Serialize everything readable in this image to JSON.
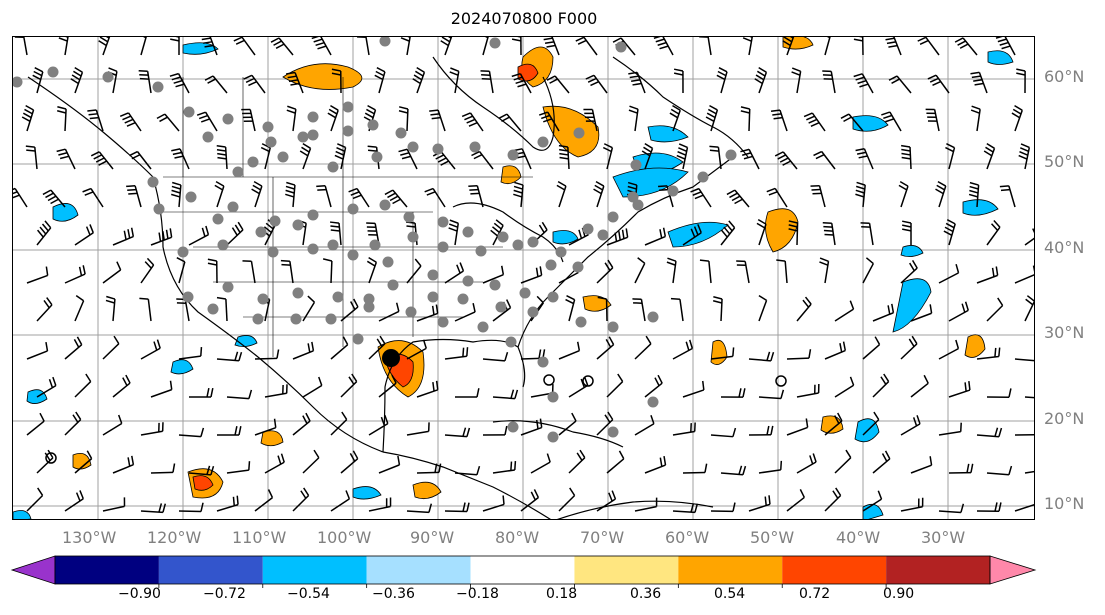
{
  "title": "2024070800 F000",
  "lat_labels": [
    "60°N",
    "50°N",
    "40°N",
    "30°N",
    "20°N",
    "10°N"
  ],
  "lon_labels": [
    "130°W",
    "120°W",
    "110°W",
    "100°W",
    "90°W",
    "80°W",
    "70°W",
    "60°W",
    "50°W",
    "40°W",
    "30°W"
  ],
  "colorbar": {
    "ticks": [
      "−0.90",
      "−0.72",
      "−0.54",
      "−0.36",
      "−0.18",
      "0.18",
      "0.36",
      "0.54",
      "0.72",
      "0.90"
    ],
    "colors": [
      "#9933cc",
      "#000080",
      "#3355cc",
      "#00bfff",
      "#a6e0ff",
      "#ffffff",
      "#ffe680",
      "#ffa500",
      "#ff4500",
      "#b22222",
      "#ff88aa"
    ]
  },
  "colors": {
    "grid": "#a0a0a0",
    "coast": "#000000",
    "station": "#808080",
    "center_marker": "#000000"
  }
}
